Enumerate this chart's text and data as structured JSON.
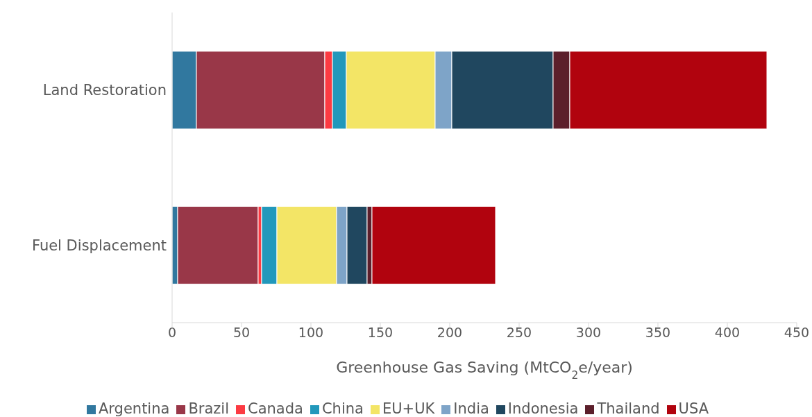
{
  "chart_data": {
    "type": "bar",
    "orientation": "horizontal",
    "stacked": true,
    "xlabel": "Greenhouse Gas Saving (MtCO$_{2}$e/year)",
    "categories": [
      "Land Restoration",
      "Fuel Displacement"
    ],
    "xlim": [
      0,
      450
    ],
    "xticks": [
      0,
      50,
      100,
      150,
      200,
      250,
      300,
      350,
      400,
      450
    ],
    "grid": false,
    "legend": "bottom",
    "series": [
      {
        "name": "Argentina",
        "color": "#31789f",
        "values": [
          17.5,
          4
        ]
      },
      {
        "name": "Brazil",
        "color": "#993748",
        "values": [
          92.5,
          58
        ]
      },
      {
        "name": "Canada",
        "color": "#fc3a42",
        "values": [
          5.5,
          2.5
        ]
      },
      {
        "name": "China",
        "color": "#2298bb",
        "values": [
          10,
          11
        ]
      },
      {
        "name": "EU+UK",
        "color": "#f3e566",
        "values": [
          64,
          43
        ]
      },
      {
        "name": "India",
        "color": "#7ea4c8",
        "values": [
          12,
          7.5
        ]
      },
      {
        "name": "Indonesia",
        "color": "#20475f",
        "values": [
          73,
          14.5
        ]
      },
      {
        "name": "Thailand",
        "color": "#5c1f2b",
        "values": [
          12,
          3.5
        ]
      },
      {
        "name": "USA",
        "color": "#b1030e",
        "values": [
          142,
          89
        ]
      }
    ]
  }
}
